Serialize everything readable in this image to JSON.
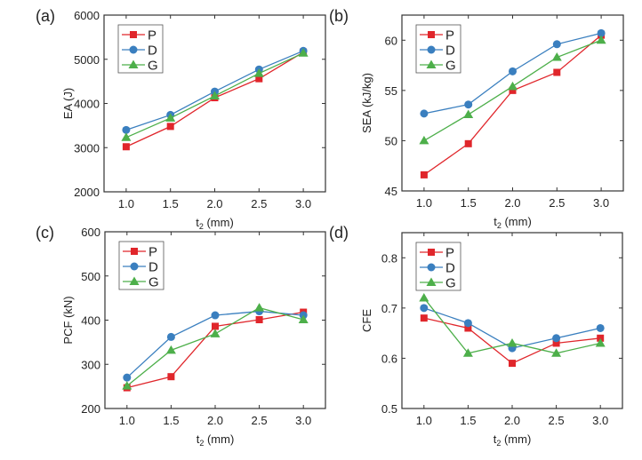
{
  "figure": {
    "panels": [
      "(a)",
      "(b)",
      "(c)",
      "(d)"
    ]
  },
  "colors": {
    "P": "#e0262b",
    "D": "#3a7fbf",
    "G": "#4daf4a",
    "axis": "#333333"
  },
  "chart_data": [
    {
      "type": "line",
      "panel_label": "(a)",
      "title": "",
      "xlabel": "t2 (mm)",
      "xlabel_main": "t",
      "xlabel_sub": "2",
      "xlabel_rest": " (mm)",
      "ylabel": "EA (J)",
      "x": [
        1.0,
        1.5,
        2.0,
        2.5,
        3.0
      ],
      "xticks": [
        "1.0",
        "1.5",
        "2.0",
        "2.5",
        "3.0"
      ],
      "xlim": [
        0.75,
        3.25
      ],
      "ylim": [
        2000,
        6000
      ],
      "yticks": [
        2000,
        3000,
        4000,
        5000,
        6000
      ],
      "ytick_labels": [
        "2000",
        "3000",
        "4000",
        "5000",
        "6000"
      ],
      "grid": false,
      "legend": "top-left",
      "series": [
        {
          "name": "P",
          "marker": "square",
          "values": [
            3020,
            3480,
            4130,
            4560,
            5160
          ]
        },
        {
          "name": "D",
          "marker": "circle",
          "values": [
            3400,
            3740,
            4270,
            4770,
            5190
          ]
        },
        {
          "name": "G",
          "marker": "triangle",
          "values": [
            3230,
            3670,
            4170,
            4680,
            5140
          ]
        }
      ]
    },
    {
      "type": "line",
      "panel_label": "(b)",
      "title": "",
      "xlabel": "t2 (mm)",
      "xlabel_main": "t",
      "xlabel_sub": "2",
      "xlabel_rest": " (mm)",
      "ylabel": "SEA (kJ/kg)",
      "x": [
        1.0,
        1.5,
        2.0,
        2.5,
        3.0
      ],
      "xticks": [
        "1.0",
        "1.5",
        "2.0",
        "2.5",
        "3.0"
      ],
      "xlim": [
        0.75,
        3.25
      ],
      "ylim": [
        45,
        62.5
      ],
      "yticks": [
        45,
        50,
        55,
        60
      ],
      "ytick_labels": [
        "45",
        "50",
        "55",
        "60"
      ],
      "grid": false,
      "legend": "top-left",
      "series": [
        {
          "name": "P",
          "marker": "square",
          "values": [
            46.6,
            49.7,
            55.0,
            56.8,
            60.5
          ]
        },
        {
          "name": "D",
          "marker": "circle",
          "values": [
            52.7,
            53.6,
            56.9,
            59.6,
            60.7
          ]
        },
        {
          "name": "G",
          "marker": "triangle",
          "values": [
            50.0,
            52.6,
            55.4,
            58.3,
            60.0
          ]
        }
      ]
    },
    {
      "type": "line",
      "panel_label": "(c)",
      "title": "",
      "xlabel": "t2 (mm)",
      "xlabel_main": "t",
      "xlabel_sub": "2",
      "xlabel_rest": " (mm)",
      "ylabel": "PCF (kN)",
      "x": [
        1.0,
        1.5,
        2.0,
        2.5,
        3.0
      ],
      "xticks": [
        "1.0",
        "1.5",
        "2.0",
        "2.5",
        "3.0"
      ],
      "xlim": [
        0.75,
        3.25
      ],
      "ylim": [
        200,
        600
      ],
      "yticks": [
        200,
        300,
        400,
        500,
        600
      ],
      "ytick_labels": [
        "200",
        "300",
        "400",
        "500",
        "600"
      ],
      "grid": false,
      "legend": "top-left",
      "series": [
        {
          "name": "P",
          "marker": "square",
          "values": [
            247,
            272,
            386,
            401,
            418
          ]
        },
        {
          "name": "D",
          "marker": "circle",
          "values": [
            270,
            362,
            411,
            420,
            411
          ]
        },
        {
          "name": "G",
          "marker": "triangle",
          "values": [
            251,
            332,
            369,
            428,
            401
          ]
        }
      ]
    },
    {
      "type": "line",
      "panel_label": "(d)",
      "title": "",
      "xlabel": "t2 (mm)",
      "xlabel_main": "t",
      "xlabel_sub": "2",
      "xlabel_rest": " (mm)",
      "ylabel": "CFE",
      "x": [
        1.0,
        1.5,
        2.0,
        2.5,
        3.0
      ],
      "xticks": [
        "1.0",
        "1.5",
        "2.0",
        "2.5",
        "3.0"
      ],
      "xlim": [
        0.75,
        3.25
      ],
      "ylim": [
        0.5,
        0.85
      ],
      "yticks": [
        0.5,
        0.6,
        0.7,
        0.8
      ],
      "ytick_labels": [
        "0.5",
        "0.6",
        "0.7",
        "0.8"
      ],
      "grid": false,
      "legend": "top-left",
      "series": [
        {
          "name": "P",
          "marker": "square",
          "values": [
            0.68,
            0.66,
            0.59,
            0.63,
            0.64
          ]
        },
        {
          "name": "D",
          "marker": "circle",
          "values": [
            0.7,
            0.67,
            0.62,
            0.64,
            0.66
          ]
        },
        {
          "name": "G",
          "marker": "triangle",
          "values": [
            0.72,
            0.61,
            0.63,
            0.61,
            0.63
          ]
        }
      ]
    }
  ]
}
